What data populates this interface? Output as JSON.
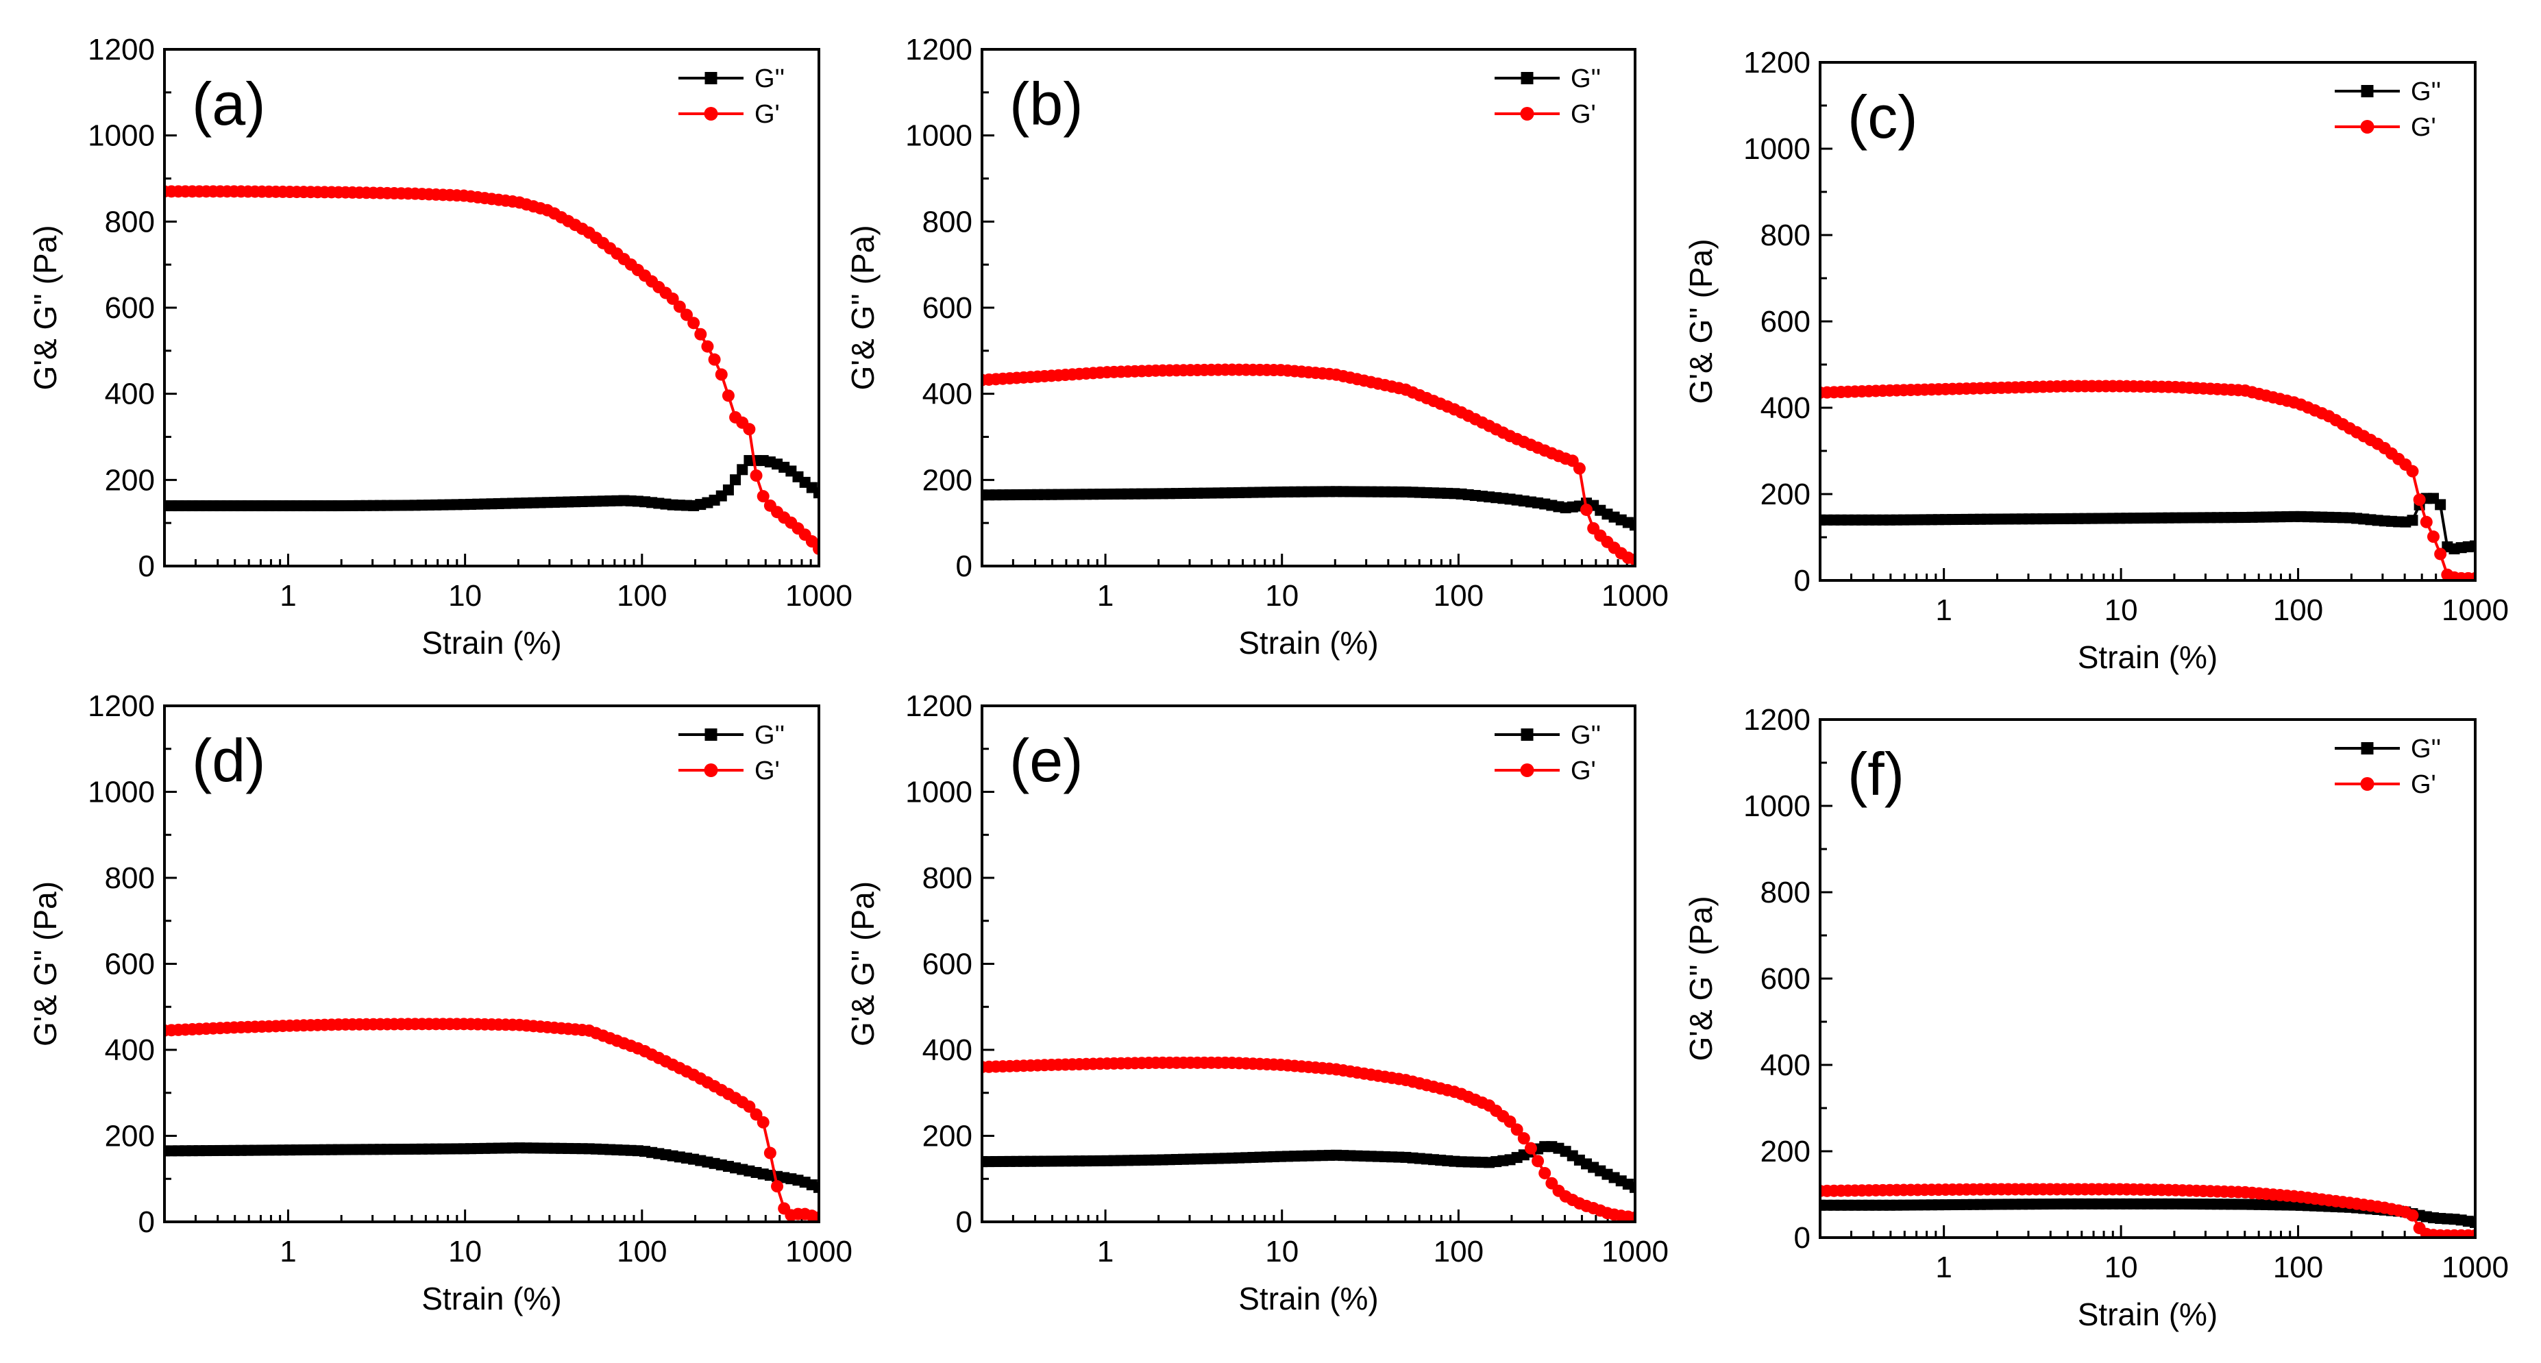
{
  "colors": {
    "g_double_prime": "#000000",
    "g_prime": "#ff0000"
  },
  "chart_data": [
    {
      "type": "line",
      "panel_label": "(a)",
      "xlabel": "Strain (%)",
      "ylabel": "G'& G'' (Pa)",
      "x_scale": "log",
      "xlim": [
        0.2,
        1000
      ],
      "ylim": [
        0,
        1200
      ],
      "x_ticks": [
        "1",
        "10",
        "100",
        "1000"
      ],
      "y_ticks": [
        "0",
        "200",
        "400",
        "600",
        "800",
        "1000",
        "1200"
      ],
      "legend_position": "top-right",
      "series": [
        {
          "name": "G''",
          "marker": "square",
          "color": "#000000",
          "x": [
            0.2,
            0.5,
            1,
            2,
            5,
            10,
            20,
            50,
            80,
            100,
            150,
            200,
            250,
            300,
            350,
            400,
            500,
            600,
            700,
            800,
            1000
          ],
          "y": [
            140,
            140,
            140,
            140,
            141,
            143,
            146,
            150,
            152,
            150,
            142,
            140,
            150,
            170,
            210,
            245,
            245,
            235,
            220,
            200,
            170
          ]
        },
        {
          "name": "G'",
          "marker": "circle",
          "color": "#ff0000",
          "x": [
            0.2,
            0.5,
            1,
            2,
            5,
            10,
            20,
            30,
            50,
            70,
            100,
            150,
            200,
            250,
            300,
            320,
            350,
            400,
            450,
            500,
            600,
            700,
            800,
            900,
            1000
          ],
          "y": [
            870,
            870,
            869,
            868,
            865,
            860,
            845,
            825,
            775,
            730,
            680,
            620,
            560,
            490,
            420,
            360,
            335,
            330,
            190,
            150,
            120,
            100,
            80,
            60,
            40
          ]
        }
      ]
    },
    {
      "type": "line",
      "panel_label": "(b)",
      "xlabel": "Strain (%)",
      "ylabel": "G'& G'' (Pa)",
      "x_scale": "log",
      "xlim": [
        0.2,
        1000
      ],
      "ylim": [
        0,
        1200
      ],
      "x_ticks": [
        "1",
        "10",
        "100",
        "1000"
      ],
      "y_ticks": [
        "0",
        "200",
        "400",
        "600",
        "800",
        "1000",
        "1200"
      ],
      "legend_position": "top-right",
      "series": [
        {
          "name": "G''",
          "marker": "square",
          "color": "#000000",
          "x": [
            0.2,
            0.5,
            1,
            2,
            5,
            10,
            20,
            50,
            100,
            200,
            300,
            400,
            500,
            550,
            600,
            700,
            800,
            1000
          ],
          "y": [
            165,
            166,
            167,
            168,
            170,
            172,
            173,
            172,
            168,
            155,
            145,
            135,
            140,
            150,
            135,
            120,
            110,
            95
          ]
        },
        {
          "name": "G'",
          "marker": "circle",
          "color": "#ff0000",
          "x": [
            0.2,
            0.5,
            1,
            2,
            5,
            10,
            20,
            50,
            100,
            200,
            300,
            400,
            480,
            500,
            550,
            600,
            700,
            800,
            900,
            1000
          ],
          "y": [
            432,
            442,
            450,
            454,
            456,
            455,
            445,
            410,
            360,
            300,
            270,
            250,
            240,
            180,
            100,
            80,
            55,
            35,
            20,
            15
          ]
        }
      ]
    },
    {
      "type": "line",
      "panel_label": "(c)",
      "xlabel": "Strain (%)",
      "ylabel": "G'& G'' (Pa)",
      "x_scale": "log",
      "xlim": [
        0.2,
        1000
      ],
      "ylim": [
        0,
        1200
      ],
      "x_ticks": [
        "1",
        "10",
        "100",
        "1000"
      ],
      "y_ticks": [
        "0",
        "200",
        "400",
        "600",
        "800",
        "1000",
        "1200"
      ],
      "legend_position": "top-right",
      "series": [
        {
          "name": "G''",
          "marker": "square",
          "color": "#000000",
          "x": [
            0.2,
            0.5,
            1,
            2,
            5,
            10,
            20,
            50,
            100,
            200,
            300,
            400,
            450,
            500,
            600,
            650,
            700,
            800,
            1000
          ],
          "y": [
            140,
            140,
            141,
            142,
            143,
            144,
            145,
            146,
            148,
            145,
            138,
            135,
            140,
            190,
            190,
            170,
            70,
            75,
            80
          ]
        },
        {
          "name": "G'",
          "marker": "circle",
          "color": "#ff0000",
          "x": [
            0.2,
            0.5,
            1,
            2,
            5,
            10,
            20,
            50,
            100,
            150,
            200,
            300,
            400,
            450,
            500,
            550,
            600,
            650,
            700,
            800,
            1000
          ],
          "y": [
            435,
            440,
            443,
            446,
            450,
            450,
            448,
            440,
            410,
            380,
            350,
            310,
            270,
            250,
            160,
            120,
            90,
            50,
            10,
            5,
            5
          ]
        }
      ]
    },
    {
      "type": "line",
      "panel_label": "(d)",
      "xlabel": "Strain (%)",
      "ylabel": "G'& G'' (Pa)",
      "x_scale": "log",
      "xlim": [
        0.2,
        1000
      ],
      "ylim": [
        0,
        1200
      ],
      "x_ticks": [
        "1",
        "10",
        "100",
        "1000"
      ],
      "y_ticks": [
        "0",
        "200",
        "400",
        "600",
        "800",
        "1000",
        "1200"
      ],
      "legend_position": "top-right",
      "series": [
        {
          "name": "G''",
          "marker": "square",
          "color": "#000000",
          "x": [
            0.2,
            0.5,
            1,
            2,
            5,
            10,
            20,
            50,
            100,
            200,
            300,
            500,
            700,
            800,
            1000
          ],
          "y": [
            165,
            166,
            167,
            168,
            169,
            170,
            172,
            170,
            165,
            145,
            130,
            110,
            100,
            95,
            80
          ]
        },
        {
          "name": "G'",
          "marker": "circle",
          "color": "#ff0000",
          "x": [
            0.2,
            0.5,
            1,
            2,
            5,
            10,
            20,
            50,
            100,
            200,
            300,
            400,
            500,
            550,
            600,
            650,
            700,
            800,
            1000
          ],
          "y": [
            445,
            452,
            456,
            459,
            460,
            460,
            458,
            445,
            400,
            340,
            300,
            270,
            225,
            120,
            60,
            20,
            15,
            20,
            10
          ]
        }
      ]
    },
    {
      "type": "line",
      "panel_label": "(e)",
      "xlabel": "Strain (%)",
      "ylabel": "G'& G'' (Pa)",
      "x_scale": "log",
      "xlim": [
        0.2,
        1000
      ],
      "ylim": [
        0,
        1200
      ],
      "x_ticks": [
        "1",
        "10",
        "100",
        "1000"
      ],
      "y_ticks": [
        "0",
        "200",
        "400",
        "600",
        "800",
        "1000",
        "1200"
      ],
      "legend_position": "top-right",
      "series": [
        {
          "name": "G''",
          "marker": "square",
          "color": "#000000",
          "x": [
            0.2,
            0.5,
            1,
            2,
            5,
            10,
            20,
            50,
            100,
            150,
            200,
            250,
            300,
            350,
            400,
            500,
            700,
            1000
          ],
          "y": [
            140,
            141,
            142,
            144,
            148,
            152,
            155,
            150,
            140,
            138,
            145,
            160,
            175,
            175,
            165,
            140,
            110,
            80
          ]
        },
        {
          "name": "G'",
          "marker": "circle",
          "color": "#ff0000",
          "x": [
            0.2,
            0.5,
            1,
            2,
            5,
            10,
            20,
            50,
            100,
            150,
            200,
            250,
            300,
            350,
            400,
            500,
            600,
            700,
            800,
            1000
          ],
          "y": [
            360,
            365,
            368,
            370,
            370,
            365,
            355,
            330,
            300,
            270,
            230,
            180,
            120,
            80,
            60,
            40,
            30,
            20,
            15,
            10
          ]
        }
      ]
    },
    {
      "type": "line",
      "panel_label": "(f)",
      "xlabel": "Strain (%)",
      "ylabel": "G'& G'' (Pa)",
      "x_scale": "log",
      "xlim": [
        0.2,
        1000
      ],
      "ylim": [
        0,
        1200
      ],
      "x_ticks": [
        "1",
        "10",
        "100",
        "1000"
      ],
      "y_ticks": [
        "0",
        "200",
        "400",
        "600",
        "800",
        "1000",
        "1200"
      ],
      "legend_position": "top-right",
      "series": [
        {
          "name": "G''",
          "marker": "square",
          "color": "#000000",
          "x": [
            0.2,
            0.5,
            1,
            2,
            5,
            10,
            20,
            50,
            100,
            200,
            400,
            500,
            600,
            800,
            1000
          ],
          "y": [
            75,
            75,
            76,
            77,
            78,
            78,
            78,
            77,
            75,
            70,
            60,
            50,
            45,
            42,
            35
          ]
        },
        {
          "name": "G'",
          "marker": "circle",
          "color": "#ff0000",
          "x": [
            0.2,
            0.5,
            1,
            2,
            5,
            10,
            20,
            50,
            100,
            200,
            300,
            400,
            450,
            500,
            600,
            700,
            800,
            1000
          ],
          "y": [
            108,
            110,
            111,
            112,
            112,
            112,
            110,
            105,
            95,
            80,
            70,
            60,
            50,
            10,
            5,
            5,
            5,
            5
          ]
        }
      ]
    }
  ]
}
